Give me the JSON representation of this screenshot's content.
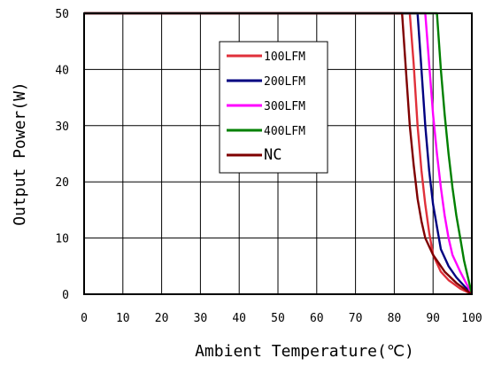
{
  "chart_data": {
    "type": "line",
    "xlabel": "Ambient Temperature(℃)",
    "ylabel": "Output Power(W)",
    "xlim": [
      0,
      100
    ],
    "ylim": [
      0,
      50
    ],
    "xticks": [
      "0",
      "10",
      "20",
      "30",
      "40",
      "50",
      "60",
      "70",
      "80",
      "90",
      "100"
    ],
    "yticks": [
      "0",
      "10",
      "20",
      "30",
      "40",
      "50"
    ],
    "grid": true,
    "legend_position": "upper-middle",
    "series": [
      {
        "name": "100LFM",
        "color": "#e0303a",
        "points": [
          [
            0,
            50
          ],
          [
            84,
            50
          ],
          [
            85,
            41
          ],
          [
            86,
            30
          ],
          [
            87,
            22
          ],
          [
            88,
            16
          ],
          [
            89,
            11
          ],
          [
            90,
            7
          ],
          [
            92,
            4
          ],
          [
            94,
            2.5
          ],
          [
            97,
            1
          ],
          [
            100,
            0
          ]
        ]
      },
      {
        "name": "200LFM",
        "color": "#000080",
        "points": [
          [
            0,
            50
          ],
          [
            86,
            50
          ],
          [
            87,
            40
          ],
          [
            88,
            30
          ],
          [
            89,
            22
          ],
          [
            90,
            16
          ],
          [
            91,
            12
          ],
          [
            92,
            8
          ],
          [
            94,
            5
          ],
          [
            96,
            3
          ],
          [
            98,
            1.5
          ],
          [
            100,
            0
          ]
        ]
      },
      {
        "name": "300LFM",
        "color": "#ff00ff",
        "points": [
          [
            0,
            50
          ],
          [
            88,
            50
          ],
          [
            89,
            41
          ],
          [
            90,
            32
          ],
          [
            91,
            25
          ],
          [
            92,
            19
          ],
          [
            93,
            14
          ],
          [
            94,
            10
          ],
          [
            95,
            7
          ],
          [
            97,
            4
          ],
          [
            100,
            0
          ]
        ]
      },
      {
        "name": "400LFM",
        "color": "#008000",
        "points": [
          [
            0,
            50
          ],
          [
            91,
            50
          ],
          [
            92,
            40
          ],
          [
            93,
            32
          ],
          [
            94,
            25
          ],
          [
            95,
            19
          ],
          [
            96,
            14
          ],
          [
            97,
            10
          ],
          [
            98,
            6
          ],
          [
            99,
            3
          ],
          [
            100,
            0
          ]
        ]
      },
      {
        "name": "NC",
        "color": "#7f0000",
        "points": [
          [
            0,
            50
          ],
          [
            82,
            50
          ],
          [
            83,
            40
          ],
          [
            84,
            30
          ],
          [
            85,
            23
          ],
          [
            86,
            17
          ],
          [
            87,
            13
          ],
          [
            88,
            10
          ],
          [
            90,
            7
          ],
          [
            93,
            4
          ],
          [
            96,
            2
          ],
          [
            100,
            0
          ]
        ]
      }
    ]
  }
}
